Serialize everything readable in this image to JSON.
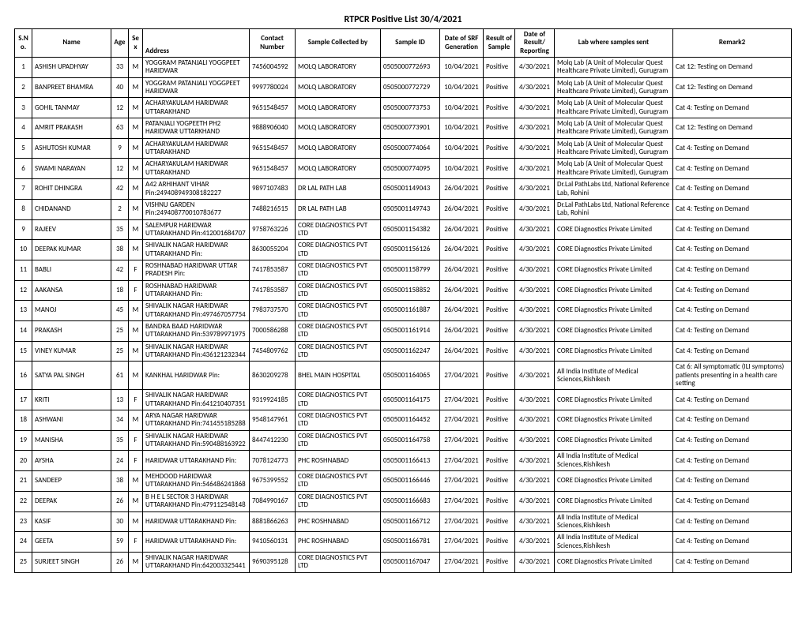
{
  "title": "RTPCR Positive List 30/4/2021",
  "columns": [
    "S.No.",
    "Name",
    "Age",
    "Sex",
    "Address",
    "Contact Number",
    "Sample Collected by",
    "Sample ID",
    "Date of SRF Generation",
    "Result of Sample",
    "Date of Result/ Reporting",
    "Lab where samples sent",
    "Remark2"
  ],
  "rows": [
    {
      "sno": "1",
      "name": "ASHISH UPADHYAY",
      "age": "33",
      "sex": "M",
      "address": "YOGGRAM PATANJALI YOGGPEET HARIDWAR",
      "contact": "7456004592",
      "collected": "MOLQ LABORATORY",
      "sid": "0505000772693",
      "srf": "10/04/2021",
      "result": "Positive",
      "dor": "4/30/2021",
      "lab": "Molq Lab (A Unit of Molecular Quest Healthcare Private Limited), Gurugram",
      "remark": "Cat 12: Testing on Demand"
    },
    {
      "sno": "2",
      "name": "BANPREET BHAMRA",
      "age": "40",
      "sex": "M",
      "address": "YOGGRAM PATANJALI YOGGPEET HARIDWAR",
      "contact": "9997780024",
      "collected": "MOLQ LABORATORY",
      "sid": "0505000772729",
      "srf": "10/04/2021",
      "result": "Positive",
      "dor": "4/30/2021",
      "lab": "Molq Lab (A Unit of Molecular Quest Healthcare Private Limited), Gurugram",
      "remark": "Cat 12: Testing on Demand"
    },
    {
      "sno": "3",
      "name": "GOHIL TANMAY",
      "age": "12",
      "sex": "M",
      "address": "ACHARYAKULAM HARIDWAR UTTARAKHAND",
      "contact": "9651548457",
      "collected": "MOLQ LABORATORY",
      "sid": "0505000773753",
      "srf": "10/04/2021",
      "result": "Positive",
      "dor": "4/30/2021",
      "lab": "Molq Lab (A Unit of Molecular Quest Healthcare Private Limited), Gurugram",
      "remark": "Cat 4: Testing on Demand"
    },
    {
      "sno": "4",
      "name": "AMRIT PRAKASH",
      "age": "63",
      "sex": "M",
      "address": "PATANJALI YOGPEETH PH2 HARIDWAR UTTARKHAND",
      "contact": "9888906040",
      "collected": "MOLQ LABORATORY",
      "sid": "0505000773901",
      "srf": "10/04/2021",
      "result": "Positive",
      "dor": "4/30/2021",
      "lab": "Molq Lab (A Unit of Molecular Quest Healthcare Private Limited), Gurugram",
      "remark": "Cat 12: Testing on Demand"
    },
    {
      "sno": "5",
      "name": "ASHUTOSH KUMAR",
      "age": "9",
      "sex": "M",
      "address": "ACHARYAKULAM HARIDWAR UTTARAKHAND",
      "contact": "9651548457",
      "collected": "MOLQ LABORATORY",
      "sid": "0505000774064",
      "srf": "10/04/2021",
      "result": "Positive",
      "dor": "4/30/2021",
      "lab": "Molq Lab (A Unit of Molecular Quest Healthcare Private Limited), Gurugram",
      "remark": "Cat 4: Testing on Demand"
    },
    {
      "sno": "6",
      "name": "SWAMI NARAYAN",
      "age": "12",
      "sex": "M",
      "address": "ACHARYAKULAM HARIDWAR UTTARAKHAND",
      "contact": "9651548457",
      "collected": "MOLQ LABORATORY",
      "sid": "0505000774095",
      "srf": "10/04/2021",
      "result": "Positive",
      "dor": "4/30/2021",
      "lab": "Molq Lab (A Unit of Molecular Quest Healthcare Private Limited), Gurugram",
      "remark": "Cat 4: Testing on Demand"
    },
    {
      "sno": "7",
      "name": "ROHIT DHINGRA",
      "age": "42",
      "sex": "M",
      "address": "A42 ARHIHANT VIHAR Pin:249408949308182227",
      "contact": "9897107483",
      "collected": "DR LAL PATH LAB",
      "sid": "0505001149043",
      "srf": "26/04/2021",
      "result": "Positive",
      "dor": "4/30/2021",
      "lab": "Dr.Lal PathLabs Ltd, National Reference Lab, Rohini",
      "remark": "Cat 4: Testing on Demand"
    },
    {
      "sno": "8",
      "name": "CHIDANAND",
      "age": "2",
      "sex": "M",
      "address": "VISHNU GARDEN Pin:249408770010783677",
      "contact": "7488216515",
      "collected": "DR LAL PATH LAB",
      "sid": "0505001149743",
      "srf": "26/04/2021",
      "result": "Positive",
      "dor": "4/30/2021",
      "lab": "Dr.Lal PathLabs Ltd, National Reference Lab, Rohini",
      "remark": "Cat 4: Testing on Demand"
    },
    {
      "sno": "9",
      "name": "RAJEEV",
      "age": "35",
      "sex": "M",
      "address": "SALEMPUR HARIDWAR UTTARAKHAND Pin:412001684707",
      "contact": "9758763226",
      "collected": "CORE DIAGNOSTICS PVT LTD",
      "sid": "0505001154382",
      "srf": "26/04/2021",
      "result": "Positive",
      "dor": "4/30/2021",
      "lab": "CORE Diagnostics Private Limited",
      "remark": "Cat 4: Testing on Demand"
    },
    {
      "sno": "10",
      "name": "DEEPAK KUMAR",
      "age": "38",
      "sex": "M",
      "address": "SHIVALIK NAGAR HARIDWAR UTTARAKHAND Pin:",
      "contact": "8630055204",
      "collected": "CORE DIAGNOSTICS PVT LTD",
      "sid": "0505001156126",
      "srf": "26/04/2021",
      "result": "Positive",
      "dor": "4/30/2021",
      "lab": "CORE Diagnostics Private Limited",
      "remark": "Cat 4: Testing on Demand"
    },
    {
      "sno": "11",
      "name": "BABLI",
      "age": "42",
      "sex": "F",
      "address": "ROSHNABAD HARIDWAR UTTAR PRADESH Pin:",
      "contact": "7417853587",
      "collected": "CORE DIAGNOSTICS PVT LTD",
      "sid": "0505001158799",
      "srf": "26/04/2021",
      "result": "Positive",
      "dor": "4/30/2021",
      "lab": "CORE Diagnostics Private Limited",
      "remark": "Cat 4: Testing on Demand"
    },
    {
      "sno": "12",
      "name": "AAKANSA",
      "age": "18",
      "sex": "F",
      "address": "ROSHNABAD HARIDWAR UTTARAKHAND Pin:",
      "contact": "7417853587",
      "collected": "CORE DIAGNOSTICS PVT LTD",
      "sid": "0505001158852",
      "srf": "26/04/2021",
      "result": "Positive",
      "dor": "4/30/2021",
      "lab": "CORE Diagnostics Private Limited",
      "remark": "Cat 4: Testing on Demand"
    },
    {
      "sno": "13",
      "name": "MANOJ",
      "age": "45",
      "sex": "M",
      "address": "SHIVALIK NAGAR HARIDWAR UTTARAKHAND Pin:497467057754",
      "contact": "7983737570",
      "collected": "CORE DIAGNOSTICS PVT LTD",
      "sid": "0505001161887",
      "srf": "26/04/2021",
      "result": "Positive",
      "dor": "4/30/2021",
      "lab": "CORE Diagnostics Private Limited",
      "remark": "Cat 4: Testing on Demand"
    },
    {
      "sno": "14",
      "name": "PRAKASH",
      "age": "25",
      "sex": "M",
      "address": "BANDRA BAAD HARIDWAR UTTARAKHAND Pin:539789971975",
      "contact": "7000586288",
      "collected": "CORE DIAGNOSTICS PVT LTD",
      "sid": "0505001161914",
      "srf": "26/04/2021",
      "result": "Positive",
      "dor": "4/30/2021",
      "lab": "CORE Diagnostics Private Limited",
      "remark": "Cat 4: Testing on Demand"
    },
    {
      "sno": "15",
      "name": "VINEY KUMAR",
      "age": "25",
      "sex": "M",
      "address": "SHIVALIK NAGAR HARIDWAR UTTARAKHAND Pin:436121232344",
      "contact": "7454809762",
      "collected": "CORE DIAGNOSTICS PVT LTD",
      "sid": "0505001162247",
      "srf": "26/04/2021",
      "result": "Positive",
      "dor": "4/30/2021",
      "lab": "CORE Diagnostics Private Limited",
      "remark": "Cat 4: Testing on Demand"
    },
    {
      "sno": "16",
      "name": "SATYA PAL SINGH",
      "age": "61",
      "sex": "M",
      "address": "KANKHAL HARIDWAR Pin:",
      "contact": "8630209278",
      "collected": "BHEL MAIN HOSPITAL",
      "sid": "0505001164065",
      "srf": "27/04/2021",
      "result": "Positive",
      "dor": "4/30/2021",
      "lab": "All India Institute of Medical Sciences,Rishikesh",
      "remark": "Cat 6: All symptomatic (ILI symptoms) patients presenting in a health care setting"
    },
    {
      "sno": "17",
      "name": "KRITI",
      "age": "13",
      "sex": "F",
      "address": "SHIVALIK NAGAR HARIDWAR UTTARAKHAND Pin:641210407351",
      "contact": "9319924185",
      "collected": "CORE DIAGNOSTICS PVT LTD",
      "sid": "0505001164175",
      "srf": "27/04/2021",
      "result": "Positive",
      "dor": "4/30/2021",
      "lab": "CORE Diagnostics Private Limited",
      "remark": "Cat 4: Testing on Demand"
    },
    {
      "sno": "18",
      "name": "ASHWANI",
      "age": "34",
      "sex": "M",
      "address": "ARYA NAGAR HARIDWAR UTTARAKHAND Pin:741455185288",
      "contact": "9548147961",
      "collected": "CORE DIAGNOSTICS PVT LTD",
      "sid": "0505001164452",
      "srf": "27/04/2021",
      "result": "Positive",
      "dor": "4/30/2021",
      "lab": "CORE Diagnostics Private Limited",
      "remark": "Cat 4: Testing on Demand"
    },
    {
      "sno": "19",
      "name": "MANISHA",
      "age": "35",
      "sex": "F",
      "address": "SHIVALIK NAGAR HARIDWAR UTTARAKHAND Pin:590488163922",
      "contact": "8447412230",
      "collected": "CORE DIAGNOSTICS PVT LTD",
      "sid": "0505001164758",
      "srf": "27/04/2021",
      "result": "Positive",
      "dor": "4/30/2021",
      "lab": "CORE Diagnostics Private Limited",
      "remark": "Cat 4: Testing on Demand"
    },
    {
      "sno": "20",
      "name": "AYSHA",
      "age": "24",
      "sex": "F",
      "address": "HARIDWAR UTTARAKHAND Pin:",
      "contact": "7078124773",
      "collected": "PHC ROSHNABAD",
      "sid": "0505001166413",
      "srf": "27/04/2021",
      "result": "Positive",
      "dor": "4/30/2021",
      "lab": "All India Institute of Medical Sciences,Rishikesh",
      "remark": "Cat 4: Testing on Demand"
    },
    {
      "sno": "21",
      "name": "SANDEEP",
      "age": "38",
      "sex": "M",
      "address": "MEHDOOD HARIDWAR UTTARAKHAND Pin:546486241868",
      "contact": "9675399552",
      "collected": "CORE DIAGNOSTICS PVT LTD",
      "sid": "0505001166446",
      "srf": "27/04/2021",
      "result": "Positive",
      "dor": "4/30/2021",
      "lab": "CORE Diagnostics Private Limited",
      "remark": "Cat 4: Testing on Demand"
    },
    {
      "sno": "22",
      "name": "DEEPAK",
      "age": "26",
      "sex": "M",
      "address": "B H E L SECTOR 3 HARIDWAR UTTARAKHAND Pin:479112548148",
      "contact": "7084990167",
      "collected": "CORE DIAGNOSTICS PVT LTD",
      "sid": "0505001166683",
      "srf": "27/04/2021",
      "result": "Positive",
      "dor": "4/30/2021",
      "lab": "CORE Diagnostics Private Limited",
      "remark": "Cat 4: Testing on Demand"
    },
    {
      "sno": "23",
      "name": "KASIF",
      "age": "30",
      "sex": "M",
      "address": "HARIDWAR UTTARAKHAND Pin:",
      "contact": "8881866263",
      "collected": "PHC ROSHNABAD",
      "sid": "0505001166712",
      "srf": "27/04/2021",
      "result": "Positive",
      "dor": "4/30/2021",
      "lab": "All India Institute of Medical Sciences,Rishikesh",
      "remark": "Cat 4: Testing on Demand"
    },
    {
      "sno": "24",
      "name": "GEETA",
      "age": "59",
      "sex": "F",
      "address": "HARIDWAR UTTARAKHAND Pin:",
      "contact": "9410560131",
      "collected": "PHC ROSHNABAD",
      "sid": "0505001166781",
      "srf": "27/04/2021",
      "result": "Positive",
      "dor": "4/30/2021",
      "lab": "All India Institute of Medical Sciences,Rishikesh",
      "remark": "Cat 4: Testing on Demand"
    },
    {
      "sno": "25",
      "name": "SURJEET SINGH",
      "age": "26",
      "sex": "M",
      "address": "SHIVALIK NAGAR HARIDWAR UTTARAKHAND Pin:642003325441",
      "contact": "9690395128",
      "collected": "CORE DIAGNOSTICS PVT LTD",
      "sid": "0505001167047",
      "srf": "27/04/2021",
      "result": "Positive",
      "dor": "4/30/2021",
      "lab": "CORE Diagnostics Private Limited",
      "remark": "Cat 4: Testing on Demand"
    }
  ]
}
